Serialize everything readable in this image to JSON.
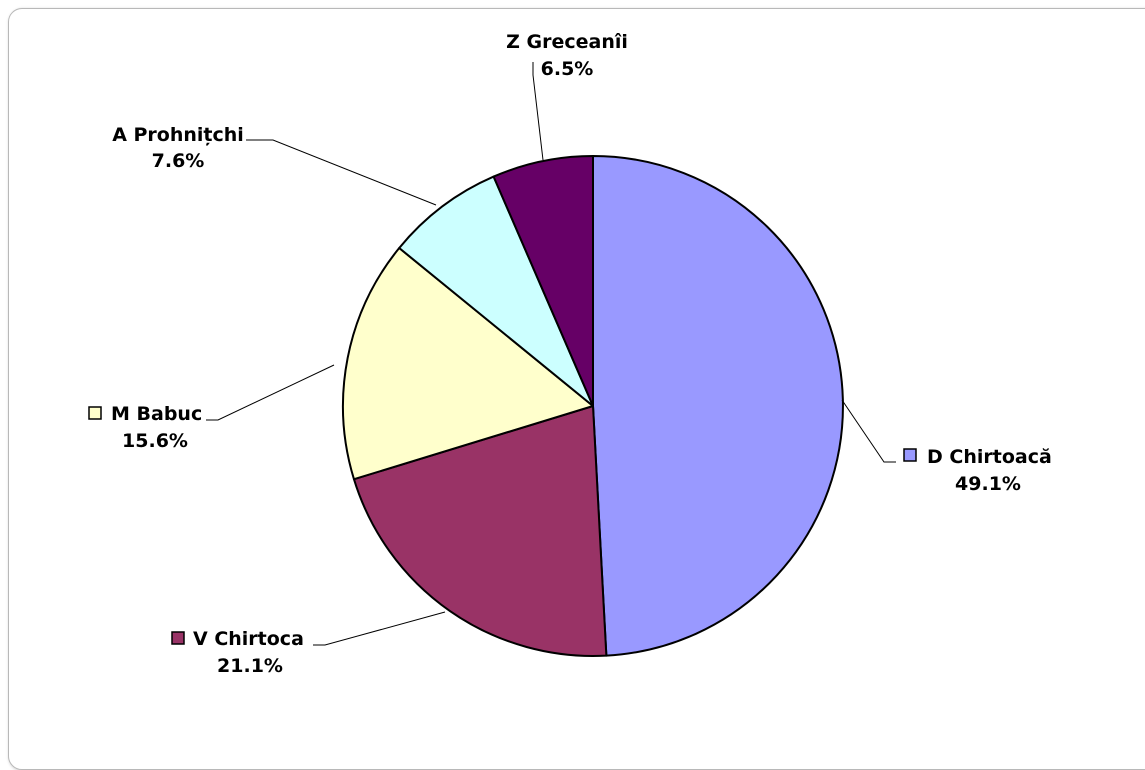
{
  "chart_data": {
    "type": "pie",
    "title": "",
    "slices": [
      {
        "name": "D Chirtoacă",
        "value": 49.1,
        "label": "49.1%",
        "color": "#9999ff",
        "key": true
      },
      {
        "name": "V Chirtoca",
        "value": 21.1,
        "label": "21.1%",
        "color": "#993366",
        "key": true
      },
      {
        "name": "M Babuc",
        "value": 15.6,
        "label": "15.6%",
        "color": "#ffffcc",
        "key": true
      },
      {
        "name": "A Prohnițchi",
        "value": 7.6,
        "label": "7.6%",
        "color": "#ccffff",
        "key": false
      },
      {
        "name": "Z Greceanîi",
        "value": 6.5,
        "label": "6.5%",
        "color": "#660066",
        "key": false
      }
    ],
    "legend": "none",
    "data_labels": "outside with leader lines"
  }
}
